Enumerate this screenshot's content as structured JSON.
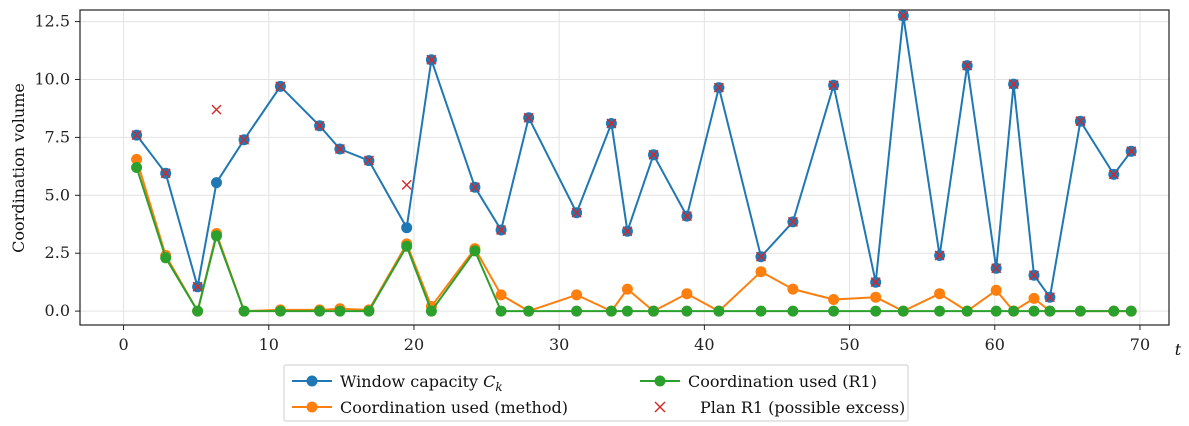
{
  "chart_data": {
    "type": "line",
    "xlabel": "t",
    "ylabel": "Coordination volume",
    "xlim": [
      -3,
      72
    ],
    "ylim": [
      -0.6,
      13.0
    ],
    "xticks": [
      0,
      10,
      20,
      30,
      40,
      50,
      60,
      70
    ],
    "xtick_labels": [
      "0",
      "10",
      "20",
      "30",
      "40",
      "50",
      "60",
      "70"
    ],
    "yticks": [
      0,
      2.5,
      5,
      7.5,
      10,
      12.5
    ],
    "ytick_labels": [
      "0.0",
      "2.5",
      "5.0",
      "7.5",
      "10.0",
      "12.5"
    ],
    "grid": true,
    "legend_position": "bottom-center",
    "x": [
      0.9,
      2.9,
      5.1,
      6.4,
      8.3,
      10.8,
      13.5,
      14.9,
      16.9,
      19.5,
      21.2,
      24.2,
      26.0,
      27.9,
      31.2,
      33.6,
      34.7,
      36.5,
      38.8,
      41.0,
      43.9,
      46.1,
      48.9,
      51.8,
      53.7,
      56.2,
      58.1,
      60.1,
      61.3,
      62.7,
      63.8,
      65.9,
      68.2,
      69.4
    ],
    "series": [
      {
        "name": "Window capacity $C_k$",
        "color": "#1f77b4",
        "values": [
          7.6,
          5.95,
          1.05,
          5.55,
          7.4,
          9.7,
          8.0,
          7.0,
          6.5,
          3.6,
          10.85,
          5.35,
          3.5,
          8.35,
          4.25,
          8.1,
          3.45,
          6.75,
          4.1,
          9.65,
          2.35,
          3.85,
          9.75,
          1.25,
          12.75,
          2.4,
          10.6,
          1.85,
          9.8,
          1.55,
          0.6,
          8.2,
          5.9,
          6.9
        ]
      },
      {
        "name": "Coordination used (method)",
        "color": "#ff7f0e",
        "values": [
          6.55,
          2.4,
          0.0,
          3.35,
          0.0,
          0.05,
          0.05,
          0.1,
          0.05,
          2.9,
          0.2,
          2.7,
          0.7,
          0.0,
          0.7,
          0.0,
          0.95,
          0.0,
          0.75,
          0.0,
          1.7,
          0.95,
          0.5,
          0.6,
          0.0,
          0.75,
          0.0,
          0.9,
          0.0,
          0.55,
          0.0,
          0.0,
          0.0,
          0.0
        ]
      },
      {
        "name": "Coordination used (R1)",
        "color": "#2ca02c",
        "values": [
          6.2,
          2.3,
          0.0,
          3.25,
          0.0,
          0.0,
          0.0,
          0.0,
          0.0,
          2.8,
          0.0,
          2.6,
          0.0,
          0.0,
          0.0,
          0.0,
          0.0,
          0.0,
          0.0,
          0.0,
          0.0,
          0.0,
          0.0,
          0.0,
          0.0,
          0.0,
          0.0,
          0.0,
          0.0,
          0.0,
          0.0,
          0.0,
          0.0,
          0.0
        ]
      },
      {
        "name": "Plan R1 (possible excess)",
        "color": "#d62728",
        "marker": "x",
        "points": [
          [
            0.9,
            7.6
          ],
          [
            2.9,
            5.95
          ],
          [
            5.1,
            1.05
          ],
          [
            6.4,
            8.7
          ],
          [
            8.3,
            7.4
          ],
          [
            10.8,
            9.7
          ],
          [
            13.5,
            8.0
          ],
          [
            14.9,
            7.0
          ],
          [
            16.9,
            6.5
          ],
          [
            19.5,
            5.45
          ],
          [
            21.2,
            10.85
          ],
          [
            24.2,
            5.35
          ],
          [
            26.0,
            3.5
          ],
          [
            27.9,
            8.35
          ],
          [
            31.2,
            4.25
          ],
          [
            33.6,
            8.1
          ],
          [
            34.7,
            3.45
          ],
          [
            36.5,
            6.75
          ],
          [
            38.8,
            4.1
          ],
          [
            41.0,
            9.65
          ],
          [
            43.9,
            2.35
          ],
          [
            46.1,
            3.85
          ],
          [
            48.9,
            9.75
          ],
          [
            51.8,
            1.25
          ],
          [
            53.7,
            12.75
          ],
          [
            56.2,
            2.4
          ],
          [
            58.1,
            10.6
          ],
          [
            60.1,
            1.85
          ],
          [
            61.3,
            9.8
          ],
          [
            62.7,
            1.55
          ],
          [
            63.8,
            0.6
          ],
          [
            65.9,
            8.2
          ],
          [
            68.2,
            5.9
          ],
          [
            69.4,
            6.9
          ]
        ]
      }
    ],
    "legend": [
      {
        "label": "Window capacity ",
        "sub": "k",
        "main": "C"
      },
      {
        "label": "Coordination used (method)"
      },
      {
        "label": "Coordination used (R1)"
      },
      {
        "label": "Plan R1 (possible excess)"
      }
    ]
  }
}
